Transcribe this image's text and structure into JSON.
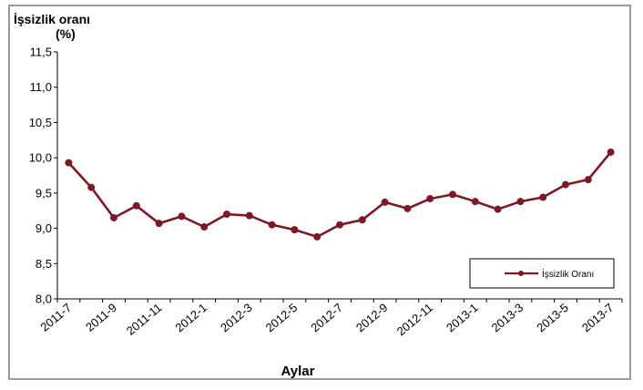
{
  "chart_data": {
    "type": "line",
    "ylabel_line1": "İşsizlik oranı",
    "ylabel_line2": "(%)",
    "xlabel": "Aylar",
    "ylim": [
      8.0,
      11.5
    ],
    "yticks": [
      "8,0",
      "8,5",
      "9,0",
      "9,5",
      "10,0",
      "10,5",
      "11,0",
      "11,5"
    ],
    "grid": false,
    "legend_position": "bottom-right",
    "categories": [
      "2011-7",
      "2011-8",
      "2011-9",
      "2011-10",
      "2011-11",
      "2011-12",
      "2012-1",
      "2012-2",
      "2012-3",
      "2012-4",
      "2012-5",
      "2012-6",
      "2012-7",
      "2012-8",
      "2012-9",
      "2012-10",
      "2012-11",
      "2012-12",
      "2013-1",
      "2013-2",
      "2013-3",
      "2013-4",
      "2013-5",
      "2013-6",
      "2013-7"
    ],
    "xtick_labels": [
      "2011-7",
      "2011-9",
      "2011-11",
      "2012-1",
      "2012-3",
      "2012-5",
      "2012-7",
      "2012-9",
      "2012-11",
      "2013-1",
      "2013-3",
      "2013-5",
      "2013-7"
    ],
    "series": [
      {
        "name": "İşsizlik Oranı",
        "color": "#7b1a24",
        "values": [
          9.93,
          9.58,
          9.15,
          9.32,
          9.07,
          9.17,
          9.02,
          9.2,
          9.18,
          9.05,
          8.98,
          8.88,
          9.05,
          9.12,
          9.37,
          9.28,
          9.42,
          9.48,
          9.38,
          9.27,
          9.38,
          9.44,
          9.62,
          9.69,
          10.08
        ]
      }
    ]
  }
}
